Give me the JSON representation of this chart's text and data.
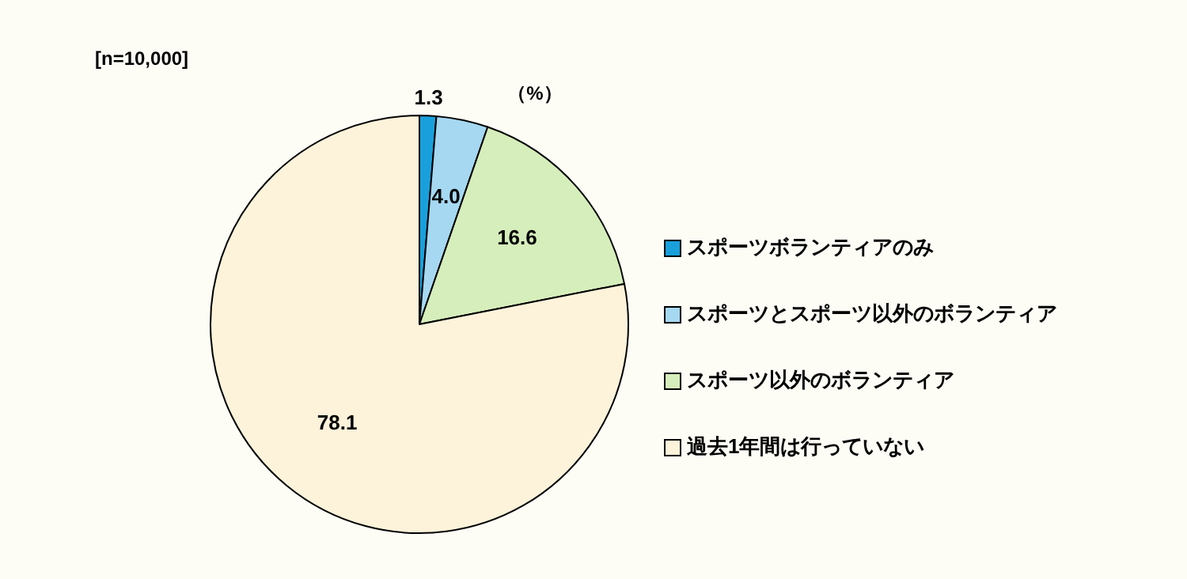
{
  "chart_data": {
    "type": "pie",
    "categories": [
      "スポーツボランティアのみ",
      "スポーツとスポーツ以外のボランティア",
      "スポーツ以外のボランティア",
      "過去1年間は行っていない"
    ],
    "values": [
      1.3,
      4.0,
      16.6,
      78.1
    ],
    "colors": [
      "#19a0dc",
      "#a6d8f2",
      "#d6eebb",
      "#fdf3da"
    ],
    "value_labels": [
      "1.3",
      "4.0",
      "16.6",
      "78.1"
    ],
    "legend": "right",
    "annotations": [
      "[n=10,000]",
      "（%）"
    ]
  }
}
